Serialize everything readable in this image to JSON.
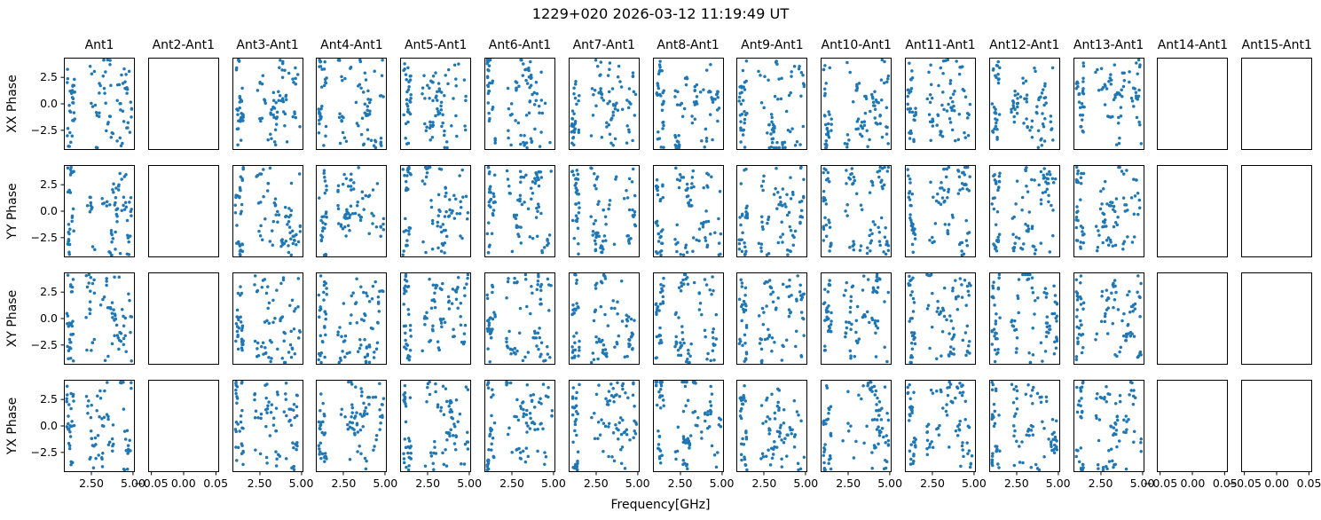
{
  "figure": {
    "title": "1229+020 2026-03-12 11:19:49 UT",
    "xlabel": "Frequency[GHz]"
  },
  "chart_data": {
    "type": "scatter",
    "title": "1229+020 2026-03-12 11:19:49 UT",
    "xlabel": "Frequency[GHz]",
    "row_labels": [
      "XX Phase",
      "YY Phase",
      "XY Phase",
      "YX Phase"
    ],
    "col_titles": [
      "Ant1",
      "Ant2-Ant1",
      "Ant3-Ant1",
      "Ant4-Ant1",
      "Ant5-Ant1",
      "Ant6-Ant1",
      "Ant7-Ant1",
      "Ant8-Ant1",
      "Ant9-Ant1",
      "Ant10-Ant1",
      "Ant11-Ant1",
      "Ant12-Ant1",
      "Ant13-Ant1",
      "Ant14-Ant1",
      "Ant15-Ant1"
    ],
    "empty_col_indices": [
      1,
      13,
      14
    ],
    "grid": {
      "n_rows": 4,
      "n_cols": 15
    },
    "marker_color": "#1f77b4",
    "axis_color": "#000000",
    "background": "#ffffff",
    "x_axis": {
      "lim": [
        0.85,
        5.11
      ],
      "ticks": [
        2.5,
        5.0
      ],
      "tick_labels": [
        "2.50",
        "5.00"
      ]
    },
    "x_axis_empty": {
      "lim": [
        -0.055,
        0.055
      ],
      "ticks": [
        -0.05,
        0.0,
        0.05
      ],
      "tick_labels": [
        "−0.05",
        "0.00",
        "0.05"
      ]
    },
    "y_axis": {
      "lim": [
        -4.36,
        4.36
      ],
      "ticks": [
        2.5,
        0.0,
        -2.5
      ],
      "tick_labels": [
        "2.5",
        "0.0",
        "−2.5"
      ]
    },
    "scatter_profile": {
      "low_band": {
        "x_range": [
          1.02,
          1.5
        ],
        "n_points": 30,
        "x_jitter": 0.09
      },
      "high_band": {
        "x_range": [
          2.18,
          4.92
        ],
        "n_points": 65,
        "x_jitter": 0.18
      },
      "y_range": [
        -4.15,
        4.15
      ],
      "y_jitter": 0.75,
      "cluster_probability": 0.45,
      "random_seed": 20260312
    }
  }
}
